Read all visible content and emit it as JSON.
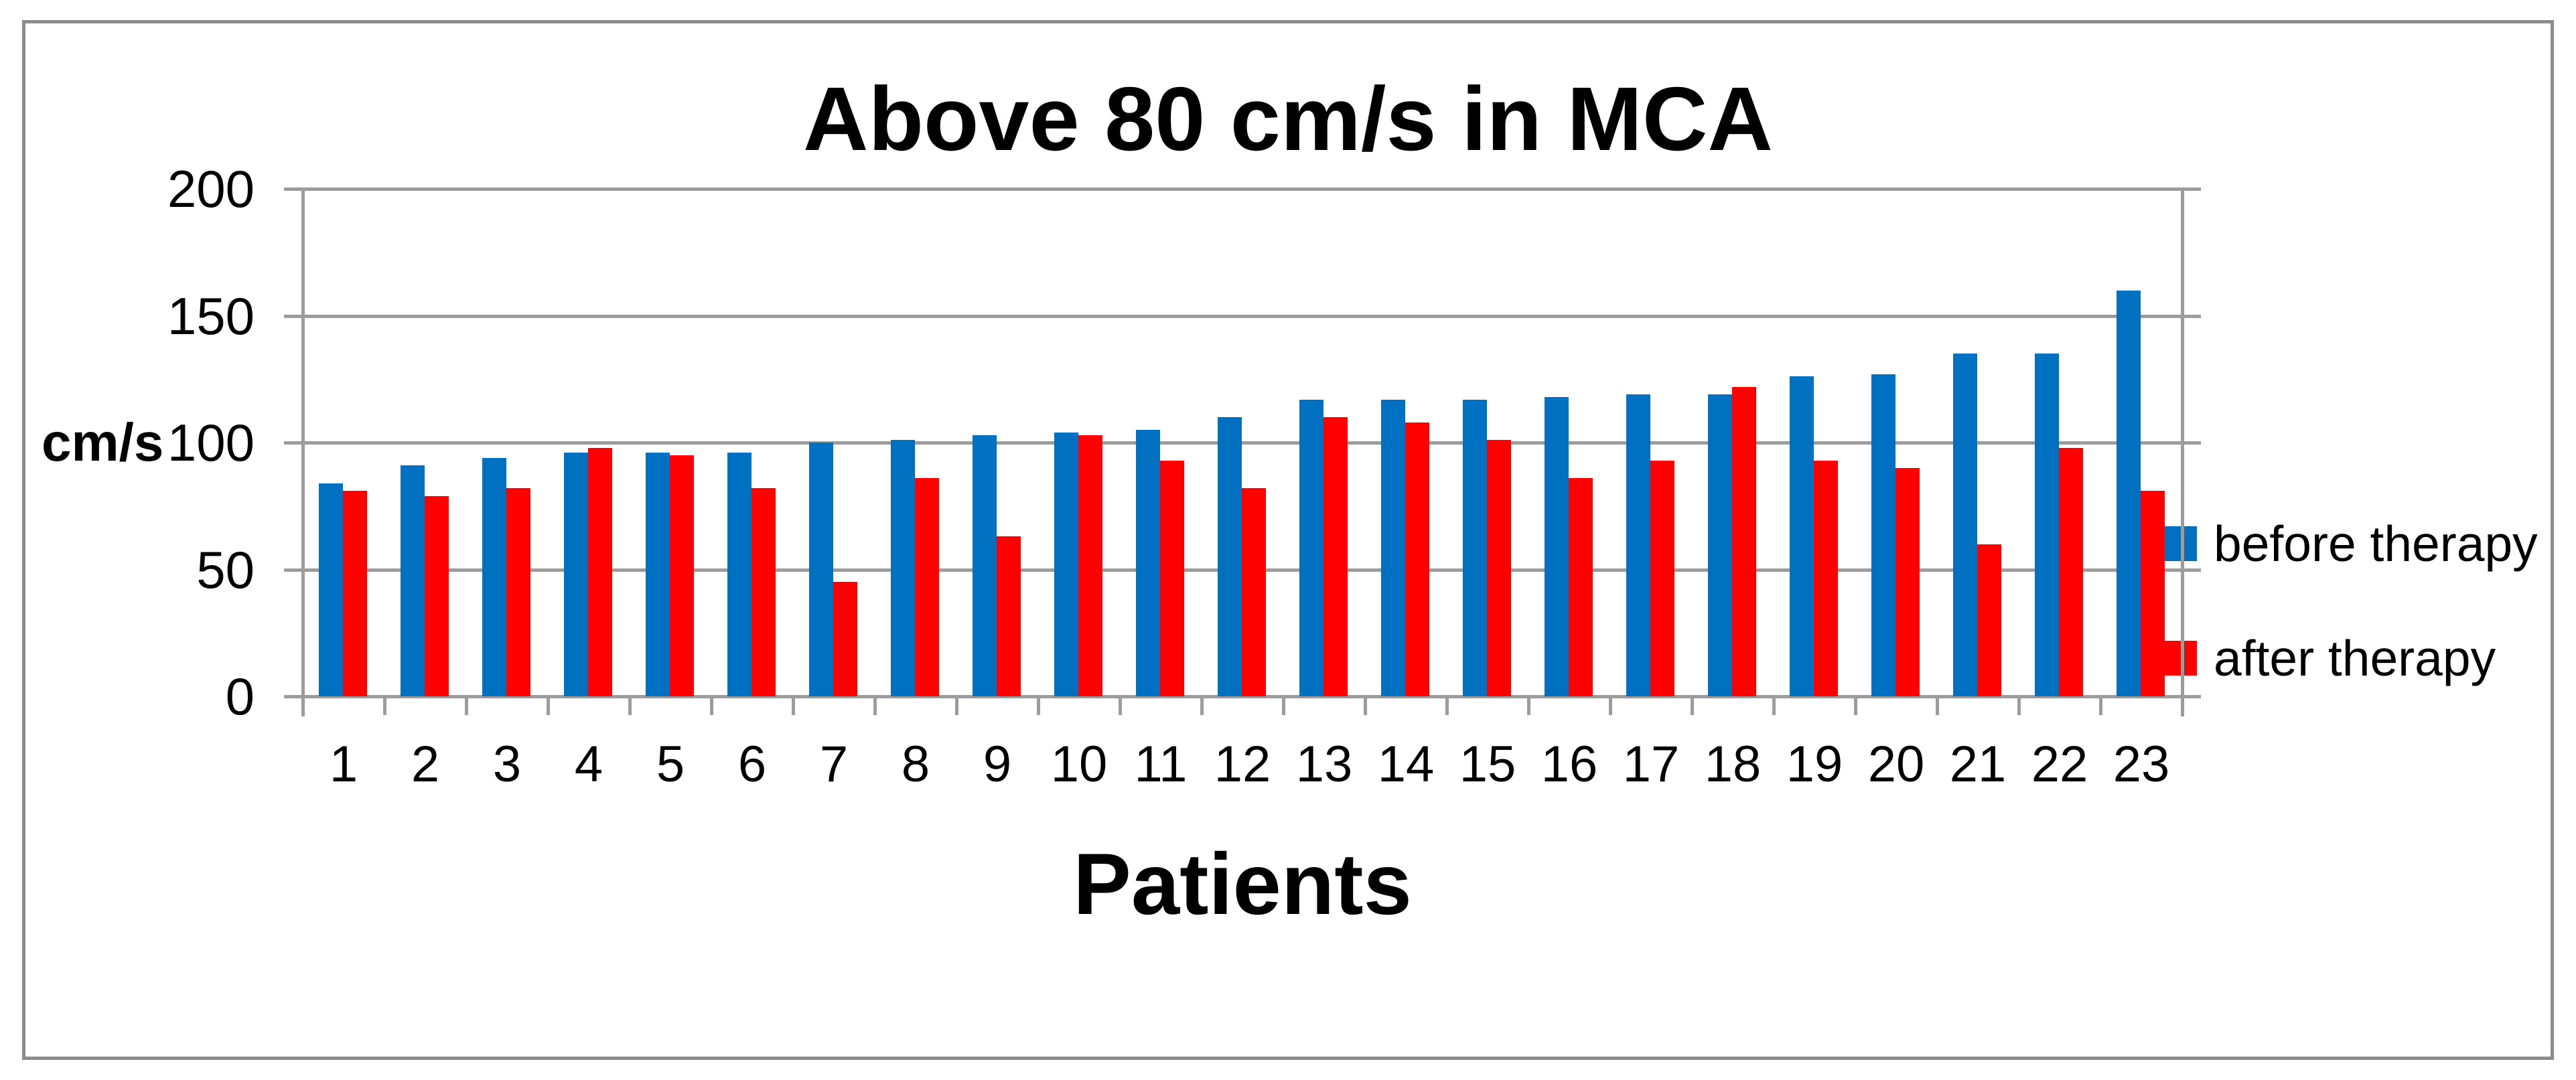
{
  "title": "Above 80 cm/s in MCA",
  "y_axis": {
    "label": "cm/s"
  },
  "x_axis": {
    "label": "Patients"
  },
  "legend": {
    "before_label": "before therapy",
    "after_label": "after therapy"
  },
  "colors": {
    "before": "#0070C0",
    "after": "#FF0000",
    "gridline": "#9C9C9C",
    "frame": "#8C8C8C",
    "text": "#000000"
  },
  "chart_data": {
    "type": "bar",
    "title": "Above 80 cm/s in MCA",
    "xlabel": "Patients",
    "ylabel": "cm/s",
    "ylim": [
      0,
      200
    ],
    "yticks": [
      0,
      50,
      100,
      150,
      200
    ],
    "grid": true,
    "legend_position": "right",
    "categories": [
      "1",
      "2",
      "3",
      "4",
      "5",
      "6",
      "7",
      "8",
      "9",
      "10",
      "11",
      "12",
      "13",
      "14",
      "15",
      "16",
      "17",
      "18",
      "19",
      "20",
      "21",
      "22",
      "23"
    ],
    "series": [
      {
        "name": "before therapy",
        "color": "#0070C0",
        "values": [
          84,
          91,
          94,
          96,
          96,
          96,
          100,
          101,
          103,
          104,
          105,
          110,
          117,
          117,
          117,
          118,
          119,
          119,
          126,
          127,
          135,
          135,
          160
        ]
      },
      {
        "name": "after therapy",
        "color": "#FF0000",
        "values": [
          81,
          79,
          82,
          98,
          95,
          82,
          45,
          86,
          63,
          103,
          93,
          82,
          110,
          108,
          101,
          86,
          93,
          122,
          93,
          90,
          60,
          98,
          81
        ]
      }
    ]
  }
}
